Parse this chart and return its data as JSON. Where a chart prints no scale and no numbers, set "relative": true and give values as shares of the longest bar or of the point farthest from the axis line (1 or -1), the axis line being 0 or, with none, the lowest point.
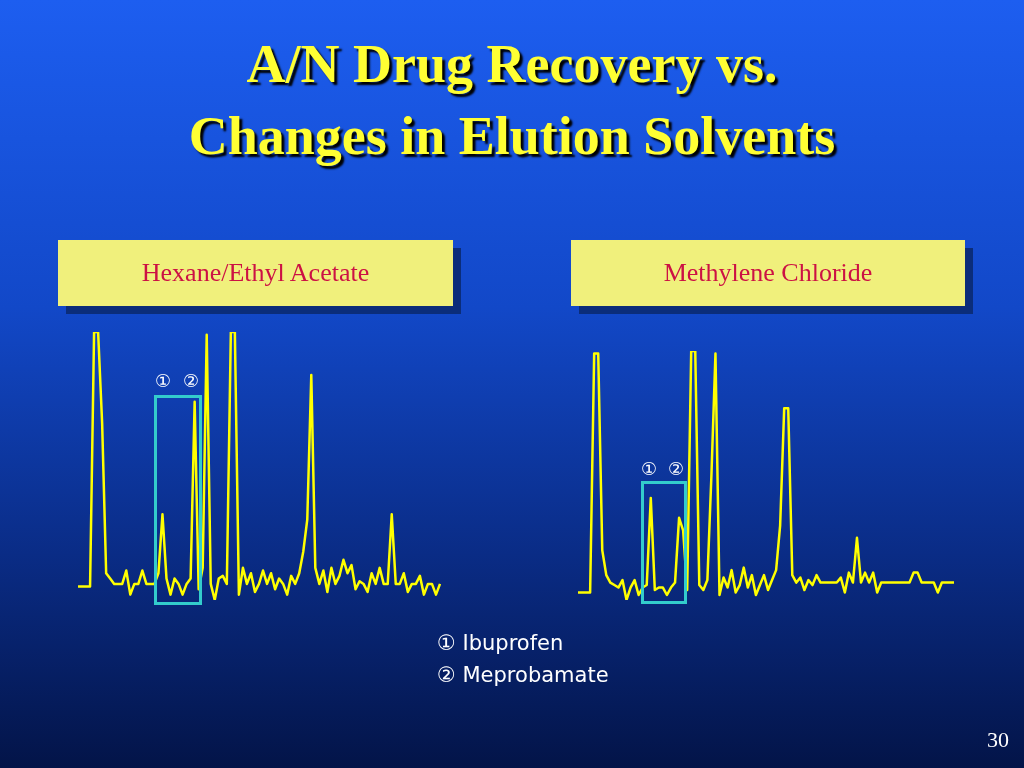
{
  "chart_data": [
    {
      "type": "line",
      "title": "A/N Drug Recovery vs. Changes in Elution Solvents",
      "subtitle": "Hexane/Ethyl Acetate",
      "relative": true,
      "annotations": [
        "①",
        "②"
      ],
      "categories": [
        null,
        null,
        null,
        null,
        null,
        null,
        null,
        null,
        null,
        null,
        null,
        null,
        null,
        null,
        null,
        null,
        null,
        null,
        null,
        null,
        null,
        null,
        null,
        null,
        null,
        null,
        null,
        null,
        null,
        null,
        null,
        null,
        null,
        null,
        null,
        null,
        null,
        null,
        null,
        null,
        null,
        null,
        null,
        null,
        null,
        null,
        null,
        null,
        null,
        null,
        null,
        null,
        null,
        null,
        null,
        null,
        null,
        null,
        null,
        null,
        null,
        null,
        null,
        null,
        null,
        null,
        null,
        null,
        null,
        null,
        null,
        null,
        null,
        null,
        null,
        null,
        null,
        null,
        null,
        null,
        null,
        null,
        null,
        null,
        null,
        null,
        null,
        null,
        null,
        null,
        null
      ],
      "series": [
        {
          "color": "#ffff00",
          "values": [
            0.05,
            0.05,
            0.05,
            0.05,
            1.0,
            1.0,
            0.66,
            0.1,
            0.08,
            0.06,
            0.06,
            0.06,
            0.11,
            0.02,
            0.06,
            0.06,
            0.11,
            0.06,
            0.06,
            0.06,
            0.1,
            0.32,
            0.08,
            0.02,
            0.08,
            0.06,
            0.02,
            0.06,
            0.08,
            0.74,
            0.04,
            0.12,
            0.99,
            0.06,
            0.0,
            0.08,
            0.09,
            0.06,
            1.0,
            1.0,
            0.02,
            0.12,
            0.06,
            0.1,
            0.03,
            0.06,
            0.11,
            0.06,
            0.1,
            0.04,
            0.08,
            0.06,
            0.02,
            0.09,
            0.06,
            0.1,
            0.18,
            0.3,
            0.84,
            0.12,
            0.06,
            0.11,
            0.03,
            0.12,
            0.06,
            0.09,
            0.15,
            0.1,
            0.13,
            0.04,
            0.07,
            0.06,
            0.03,
            0.1,
            0.06,
            0.12,
            0.06,
            0.06,
            0.32,
            0.06,
            0.06,
            0.1,
            0.03,
            0.06,
            0.06,
            0.09,
            0.02,
            0.06,
            0.06,
            0.02,
            0.06
          ]
        }
      ]
    },
    {
      "type": "line",
      "subtitle": "Methylene Chloride",
      "relative": true,
      "annotations": [
        "①",
        "②",
        "① Ibuprofen",
        "② Meprobamate",
        "30"
      ],
      "categories": [
        null,
        null,
        null,
        null,
        null,
        null,
        null,
        null,
        null,
        null,
        null,
        null,
        null,
        null,
        null,
        null,
        null,
        null,
        null,
        null,
        null,
        null,
        null,
        null,
        null,
        null,
        null,
        null,
        null,
        null,
        null,
        null,
        null,
        null,
        null,
        null,
        null,
        null,
        null,
        null,
        null,
        null,
        null,
        null,
        null,
        null,
        null,
        null,
        null,
        null,
        null,
        null,
        null,
        null,
        null,
        null,
        null,
        null,
        null,
        null,
        null,
        null,
        null,
        null,
        null,
        null,
        null,
        null,
        null,
        null,
        null,
        null,
        null,
        null,
        null,
        null,
        null,
        null,
        null,
        null,
        null,
        null,
        null,
        null,
        null,
        null,
        null,
        null,
        null,
        null,
        null,
        null,
        null,
        null
      ],
      "series": [
        {
          "color": "#ffff00",
          "values": [
            0.03,
            0.03,
            0.03,
            0.03,
            0.99,
            0.99,
            0.2,
            0.1,
            0.07,
            0.06,
            0.05,
            0.08,
            0.0,
            0.05,
            0.08,
            0.02,
            0.05,
            0.06,
            0.41,
            0.04,
            0.05,
            0.05,
            0.02,
            0.05,
            0.07,
            0.33,
            0.28,
            0.04,
            1.0,
            1.0,
            0.06,
            0.04,
            0.08,
            0.5,
            0.99,
            0.02,
            0.09,
            0.05,
            0.12,
            0.03,
            0.06,
            0.13,
            0.05,
            0.1,
            0.02,
            0.06,
            0.1,
            0.04,
            0.08,
            0.12,
            0.3,
            0.77,
            0.77,
            0.1,
            0.07,
            0.09,
            0.04,
            0.08,
            0.06,
            0.1,
            0.07,
            0.07,
            0.07,
            0.07,
            0.07,
            0.09,
            0.03,
            0.11,
            0.07,
            0.25,
            0.07,
            0.11,
            0.07,
            0.11,
            0.03,
            0.07,
            0.07,
            0.07,
            0.07,
            0.07,
            0.07,
            0.07,
            0.07,
            0.11,
            0.11,
            0.07,
            0.07,
            0.07,
            0.07,
            0.03,
            0.07,
            0.07,
            0.07,
            0.07
          ]
        }
      ]
    }
  ]
}
